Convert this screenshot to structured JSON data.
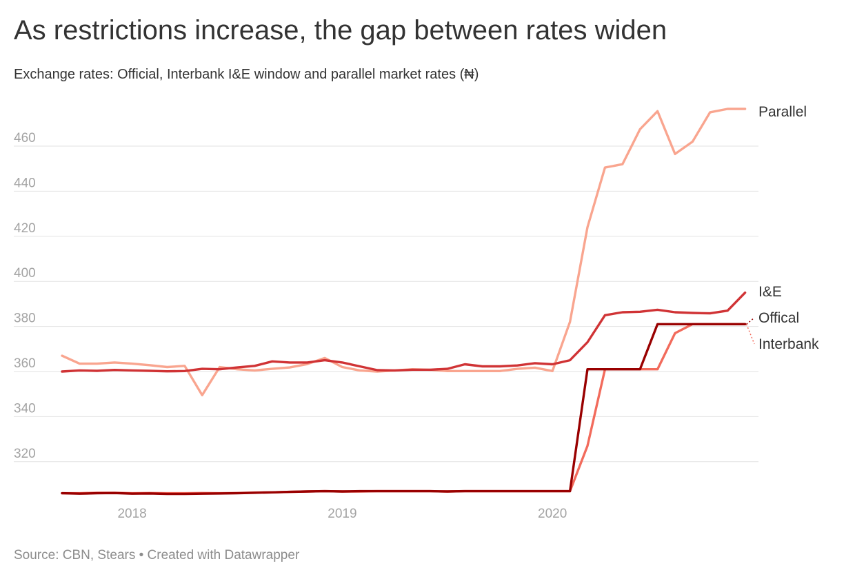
{
  "header": {
    "title": "As restrictions increase, the gap between rates widen",
    "subtitle": "Exchange rates: Official, Interbank I&E window and parallel market rates (₦)"
  },
  "footer": {
    "source": "Source: CBN, Stears • Created with Datawrapper"
  },
  "chart_data": {
    "type": "line",
    "title": "As restrictions increase, the gap between rates widen",
    "subtitle": "Exchange rates: Official, Interbank I&E window and parallel market rates (₦)",
    "xlabel": "",
    "ylabel": "",
    "x_ticks": [
      "2018",
      "2019",
      "2020"
    ],
    "y_ticks": [
      320,
      340,
      360,
      380,
      400,
      420,
      440,
      460
    ],
    "ylim": [
      300,
      480
    ],
    "grid": true,
    "legend": "direct labels at line ends (right)",
    "x": [
      "2017-09",
      "2017-10",
      "2017-11",
      "2017-12",
      "2018-01",
      "2018-02",
      "2018-03",
      "2018-04",
      "2018-05",
      "2018-06",
      "2018-07",
      "2018-08",
      "2018-09",
      "2018-10",
      "2018-11",
      "2018-12",
      "2019-01",
      "2019-02",
      "2019-03",
      "2019-04",
      "2019-05",
      "2019-06",
      "2019-07",
      "2019-08",
      "2019-09",
      "2019-10",
      "2019-11",
      "2019-12",
      "2020-01",
      "2020-02",
      "2020-03",
      "2020-04",
      "2020-05",
      "2020-06",
      "2020-07",
      "2020-08",
      "2020-09",
      "2020-10",
      "2020-11",
      "2020-12"
    ],
    "series": [
      {
        "name": "Parallel",
        "color": "#f9a58f",
        "values": [
          367,
          363.5,
          363.5,
          364,
          363.5,
          362.8,
          362,
          362.5,
          349.5,
          362,
          361,
          360.5,
          361.2,
          361.8,
          363.3,
          366,
          362,
          360.5,
          360,
          360.5,
          361,
          360.8,
          360.2,
          360.2,
          360.2,
          360.2,
          361.2,
          361.7,
          360.2,
          382,
          424,
          450.5,
          452,
          467.5,
          475.5,
          456.5,
          462,
          475,
          476.5,
          476.5
        ]
      },
      {
        "name": "I&E",
        "color": "#d03335",
        "values": [
          360,
          360.5,
          360.3,
          360.7,
          360.5,
          360.3,
          360.1,
          360.2,
          361.2,
          361,
          361.8,
          362.5,
          364.5,
          364,
          364,
          365,
          364,
          362.3,
          360.6,
          360.5,
          360.8,
          360.8,
          361.2,
          363.2,
          362.3,
          362.3,
          362.7,
          363.7,
          363.2,
          365,
          373,
          385,
          386.3,
          386.5,
          387.4,
          386.3,
          386,
          385.8,
          387,
          395
        ]
      },
      {
        "name": "Interbank",
        "color": "#f26b5c",
        "values": [
          306,
          306,
          306.2,
          306.2,
          306,
          306.1,
          306,
          306,
          306.1,
          306,
          306.1,
          306.3,
          306.4,
          306.6,
          306.8,
          306.9,
          306.8,
          306.8,
          306.9,
          306.9,
          306.9,
          306.9,
          306.8,
          306.9,
          306.9,
          306.9,
          306.9,
          306.9,
          306.9,
          306.9,
          327,
          361,
          361,
          361,
          361,
          377,
          381,
          381,
          381,
          381
        ]
      },
      {
        "name": "Offical",
        "color": "#990000",
        "values": [
          306,
          305.8,
          306,
          306.1,
          305.8,
          305.9,
          305.7,
          305.7,
          305.8,
          305.9,
          306,
          306.2,
          306.4,
          306.6,
          306.8,
          306.9,
          306.8,
          306.9,
          306.9,
          306.9,
          306.9,
          306.9,
          306.8,
          306.9,
          306.9,
          306.9,
          306.9,
          306.9,
          306.9,
          306.9,
          361,
          361,
          361,
          361,
          381,
          381,
          381,
          381,
          381,
          381
        ]
      }
    ]
  }
}
